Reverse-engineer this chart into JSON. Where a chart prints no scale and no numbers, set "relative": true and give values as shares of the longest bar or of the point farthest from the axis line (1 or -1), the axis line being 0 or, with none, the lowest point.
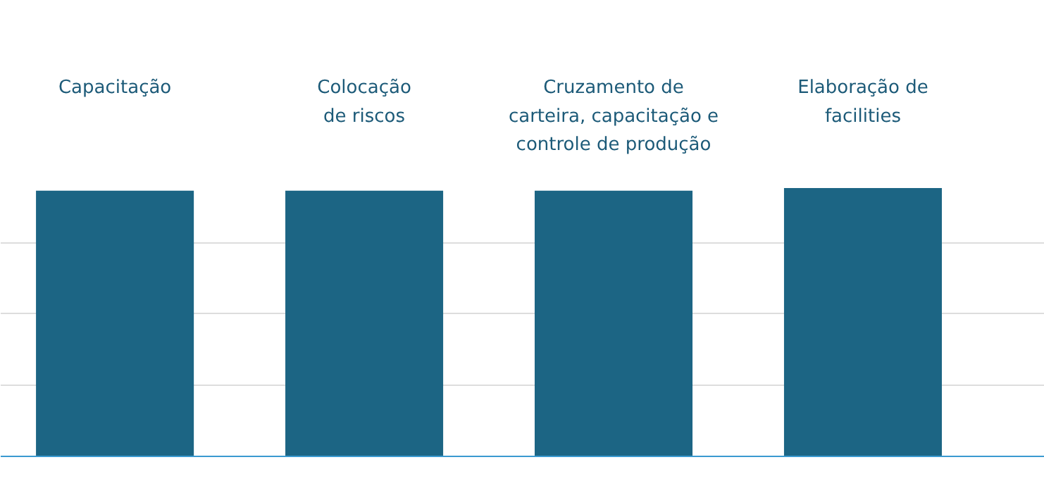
{
  "chart_data": {
    "type": "bar",
    "relative": true,
    "grid": "y",
    "categories": [
      "Capacitação",
      "Colocação\nde riscos",
      "Cruzamento de\ncarteira, capacitação e\ncontrole de produção",
      "Elaboração de\nfacilities"
    ],
    "values": [
      0.99,
      0.99,
      0.99,
      1
    ],
    "color": "#1c6584"
  }
}
